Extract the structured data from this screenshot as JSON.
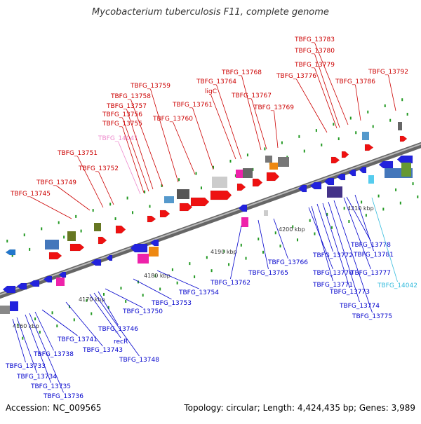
{
  "title": "Mycobacterium tuberculosis F11, complete genome",
  "accession_text": "Accession: NC_009565",
  "summary_text": "Topology: circular; Length: 4,424,435 bp; Genes: 3,989",
  "colors": {
    "forward_label": "#cc0000",
    "reverse_label": "#0000cc",
    "rna_label_forward": "#ee88cc",
    "rna_label_reverse": "#33bbdd",
    "backbone": "#888888",
    "tick": "#229922"
  },
  "scale": [
    {
      "label": "4160 kbp"
    },
    {
      "label": "4170 kbp"
    },
    {
      "label": "4180 kbp"
    },
    {
      "label": "4190 kbp"
    },
    {
      "label": "4200 kbp"
    },
    {
      "label": "4210 kbp"
    }
  ],
  "forward_labels": [
    {
      "text": "TBFG_13745"
    },
    {
      "text": "TBFG_13749"
    },
    {
      "text": "TBFG_13751"
    },
    {
      "text": "TBFG_13752"
    },
    {
      "text": "TBFG_14041"
    },
    {
      "text": "TBFG_13755"
    },
    {
      "text": "TBFG_13756"
    },
    {
      "text": "TBFG_13757"
    },
    {
      "text": "TBFG_13758"
    },
    {
      "text": "TBFG_13759"
    },
    {
      "text": "TBFG_13760"
    },
    {
      "text": "TBFG_13761"
    },
    {
      "text": "TBFG_13764"
    },
    {
      "text": "ligC"
    },
    {
      "text": "TBFG_13767"
    },
    {
      "text": "TBFG_13768"
    },
    {
      "text": "TBFG_13769"
    },
    {
      "text": "TBFG_13776"
    },
    {
      "text": "TBFG_13779"
    },
    {
      "text": "TBFG_13780"
    },
    {
      "text": "TBFG_13783"
    },
    {
      "text": "TBFG_13786"
    },
    {
      "text": "TBFG_13792"
    }
  ],
  "reverse_labels": [
    {
      "text": "TBFG_13733"
    },
    {
      "text": "TBFG_13734"
    },
    {
      "text": "TBFG_13735"
    },
    {
      "text": "TBFG_13736"
    },
    {
      "text": "TBFG_13738"
    },
    {
      "text": "TBFG_13741"
    },
    {
      "text": "TBFG_13743"
    },
    {
      "text": "recR"
    },
    {
      "text": "TBFG_13748"
    },
    {
      "text": "TBFG_13746"
    },
    {
      "text": "TBFG_13750"
    },
    {
      "text": "TBFG_13753"
    },
    {
      "text": "TBFG_13754"
    },
    {
      "text": "TBFG_13762"
    },
    {
      "text": "TBFG_13765"
    },
    {
      "text": "TBFG_13766"
    },
    {
      "text": "TBFG_13770"
    },
    {
      "text": "TBFG_13771"
    },
    {
      "text": "TBFG_13772"
    },
    {
      "text": "TBFG_13773"
    },
    {
      "text": "TBFG_13774"
    },
    {
      "text": "TBFG_13775"
    },
    {
      "text": "TBFG_13777"
    },
    {
      "text": "TBFG_13778"
    },
    {
      "text": "TBFG_13781"
    },
    {
      "text": "TBFG_14042"
    }
  ]
}
